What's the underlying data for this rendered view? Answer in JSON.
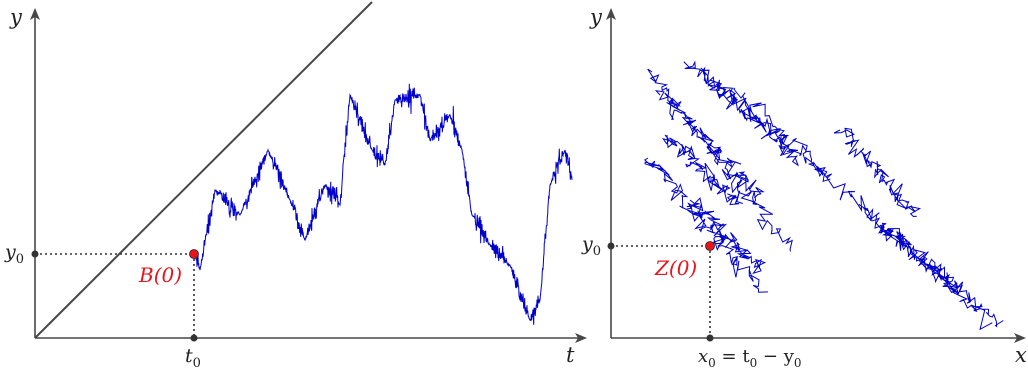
{
  "left_panel": {
    "y_axis_label": "y",
    "x_axis_label": "t",
    "y_tick_label": "y",
    "y_tick_sub": "0",
    "x_tick_label": "t",
    "x_tick_sub": "0",
    "point_label": "B(0)"
  },
  "right_panel": {
    "y_axis_label": "y",
    "x_axis_label": "x",
    "y_tick_label": "y",
    "y_tick_sub": "0",
    "x_tick_label": "x",
    "x_tick_sub": "0",
    "x_tick_rest": " = t",
    "x_tick_sub2": "0",
    "x_tick_minus": " − y",
    "x_tick_sub3": "0",
    "point_label": "Z(0)"
  },
  "colors": {
    "axis": "#474747",
    "path": "#0000cc",
    "point": "#e8141c",
    "dot": "#333333"
  }
}
